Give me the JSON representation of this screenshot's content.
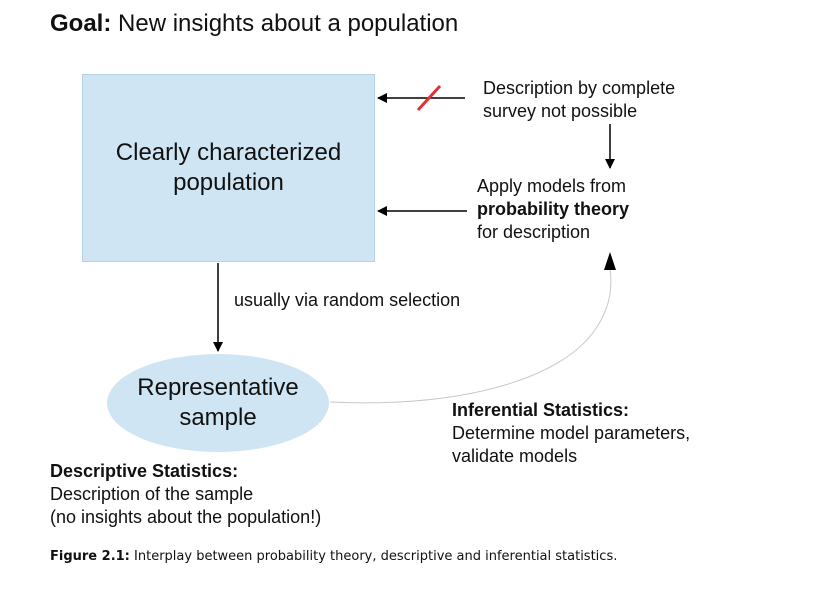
{
  "title": {
    "bold": "Goal:",
    "text": " New insights about a population"
  },
  "population_box": {
    "line1": "Clearly characterized",
    "line2": "population"
  },
  "sample_ellipse": {
    "line1": "Representative",
    "line2": "sample"
  },
  "complete_survey": {
    "line1": "Description by complete",
    "line2": "survey not possible"
  },
  "models": {
    "line1": "Apply models from",
    "line2_bold": "probability theory",
    "line3": "for description"
  },
  "selection_label": "usually via random selection",
  "inferential": {
    "heading": "Inferential Statistics:",
    "line1": "Determine model parameters,",
    "line2": "validate models"
  },
  "descriptive": {
    "heading": "Descriptive Statistics:",
    "line1": "Description of the sample",
    "line2": "(no insights about the population!)"
  },
  "caption": {
    "label": "Figure 2.1:",
    "text": " Interplay between probability theory, descriptive and inferential statistics."
  },
  "colors": {
    "fill": "#cfe5f4",
    "strike": "#e0312e",
    "curve": "#c8c8c8"
  }
}
